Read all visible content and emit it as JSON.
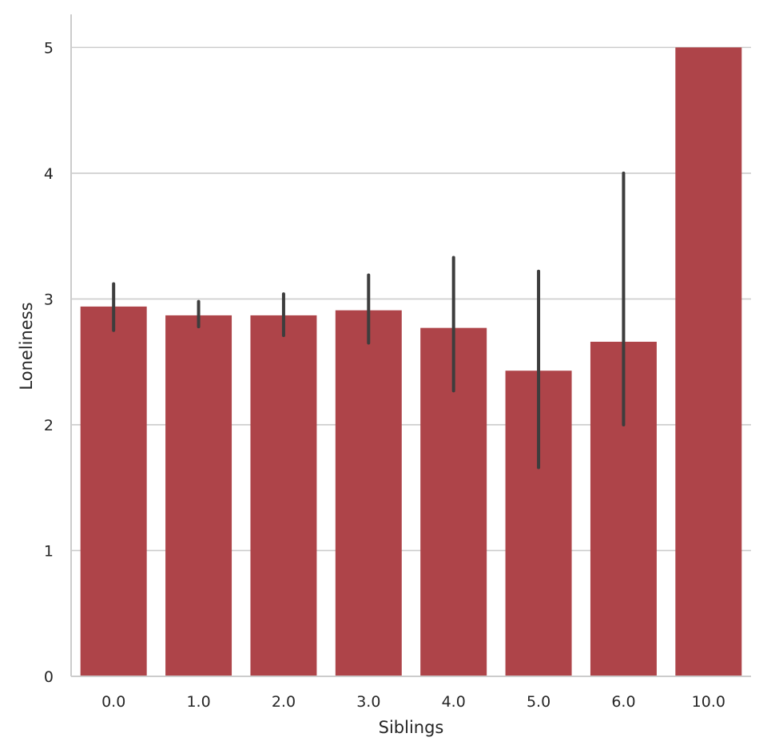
{
  "chart_data": {
    "type": "bar",
    "title": "",
    "xlabel": "Siblings",
    "ylabel": "Loneliness",
    "categories": [
      "0.0",
      "1.0",
      "2.0",
      "3.0",
      "4.0",
      "5.0",
      "6.0",
      "10.0"
    ],
    "values": [
      2.94,
      2.87,
      2.87,
      2.91,
      2.77,
      2.43,
      2.66,
      5.0
    ],
    "error_low": [
      2.75,
      2.78,
      2.71,
      2.65,
      2.27,
      1.66,
      2.0,
      null
    ],
    "error_high": [
      3.12,
      2.98,
      3.04,
      3.19,
      3.33,
      3.22,
      4.0,
      null
    ],
    "ylim": [
      0,
      5.25
    ],
    "yticks": [
      0,
      1,
      2,
      3,
      4,
      5
    ],
    "grid": "horizontal",
    "bar_color": "#ae4449",
    "error_color": "#3d3d3d",
    "grid_color": "#cccccc",
    "axis_color": "#cccccc",
    "text_color": "#262626"
  }
}
